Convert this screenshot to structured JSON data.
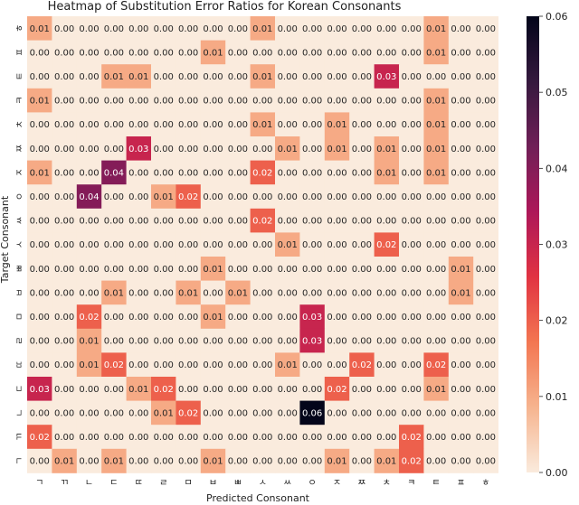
{
  "chart_data": {
    "type": "heatmap",
    "title": "Heatmap of Substitution Error Ratios for Korean Consonants",
    "xlabel": "Predicted Consonant",
    "ylabel": "Target Consonant",
    "x_categories": [
      "ㄱ",
      "ㄲ",
      "ㄴ",
      "ㄷ",
      "ㄸ",
      "ㄹ",
      "ㅁ",
      "ㅂ",
      "ㅃ",
      "ㅅ",
      "ㅆ",
      "ㅇ",
      "ㅈ",
      "ㅉ",
      "ㅊ",
      "ㅋ",
      "ㅌ",
      "ㅍ",
      "ㅎ"
    ],
    "y_categories": [
      "ㅎ",
      "ㅍ",
      "ㅌ",
      "ㅋ",
      "ㅊ",
      "ㅉ",
      "ㅈ",
      "ㅇ",
      "ㅆ",
      "ㅅ",
      "ㅃ",
      "ㅂ",
      "ㅁ",
      "ㄹ",
      "ㄸ",
      "ㄷ",
      "ㄴ",
      "ㄲ",
      "ㄱ"
    ],
    "values": [
      [
        0.01,
        0.0,
        0.0,
        0.0,
        0.0,
        0.0,
        0.0,
        0.0,
        0.0,
        0.01,
        0.0,
        0.0,
        0.0,
        0.0,
        0.0,
        0.0,
        0.01,
        0.0,
        0.0
      ],
      [
        0.0,
        0.0,
        0.0,
        0.0,
        0.0,
        0.0,
        0.0,
        0.01,
        0.0,
        0.0,
        0.0,
        0.0,
        0.0,
        0.0,
        0.0,
        0.0,
        0.01,
        0.0,
        0.0
      ],
      [
        0.0,
        0.0,
        0.0,
        0.01,
        0.01,
        0.0,
        0.0,
        0.0,
        0.0,
        0.01,
        0.0,
        0.0,
        0.0,
        0.0,
        0.03,
        0.0,
        0.0,
        0.0,
        0.0
      ],
      [
        0.01,
        0.0,
        0.0,
        0.0,
        0.0,
        0.0,
        0.0,
        0.0,
        0.0,
        0.0,
        0.0,
        0.0,
        0.0,
        0.0,
        0.0,
        0.0,
        0.01,
        0.0,
        0.0
      ],
      [
        0.0,
        0.0,
        0.0,
        0.0,
        0.0,
        0.0,
        0.0,
        0.0,
        0.0,
        0.01,
        0.0,
        0.0,
        0.01,
        0.0,
        0.0,
        0.0,
        0.01,
        0.0,
        0.0
      ],
      [
        0.0,
        0.0,
        0.0,
        0.0,
        0.03,
        0.0,
        0.0,
        0.0,
        0.0,
        0.0,
        0.01,
        0.0,
        0.01,
        0.0,
        0.01,
        0.0,
        0.01,
        0.0,
        0.0
      ],
      [
        0.01,
        0.0,
        0.0,
        0.04,
        0.0,
        0.0,
        0.0,
        0.0,
        0.0,
        0.02,
        0.0,
        0.0,
        0.0,
        0.0,
        0.01,
        0.0,
        0.01,
        0.0,
        0.0
      ],
      [
        0.0,
        0.0,
        0.04,
        0.0,
        0.0,
        0.01,
        0.02,
        0.0,
        0.0,
        0.0,
        0.0,
        0.0,
        0.0,
        0.0,
        0.0,
        0.0,
        0.0,
        0.0,
        0.0
      ],
      [
        0.0,
        0.0,
        0.0,
        0.0,
        0.0,
        0.0,
        0.0,
        0.0,
        0.0,
        0.02,
        0.0,
        0.0,
        0.0,
        0.0,
        0.0,
        0.0,
        0.0,
        0.0,
        0.0
      ],
      [
        0.0,
        0.0,
        0.0,
        0.0,
        0.0,
        0.0,
        0.0,
        0.0,
        0.0,
        0.0,
        0.01,
        0.0,
        0.0,
        0.0,
        0.02,
        0.0,
        0.0,
        0.0,
        0.0
      ],
      [
        0.0,
        0.0,
        0.0,
        0.0,
        0.0,
        0.0,
        0.0,
        0.01,
        0.0,
        0.0,
        0.0,
        0.0,
        0.0,
        0.0,
        0.0,
        0.0,
        0.0,
        0.01,
        0.0
      ],
      [
        0.0,
        0.0,
        0.0,
        0.01,
        0.0,
        0.0,
        0.01,
        0.0,
        0.01,
        0.0,
        0.0,
        0.0,
        0.0,
        0.0,
        0.0,
        0.0,
        0.0,
        0.01,
        0.0
      ],
      [
        0.0,
        0.0,
        0.02,
        0.0,
        0.0,
        0.0,
        0.0,
        0.01,
        0.0,
        0.0,
        0.0,
        0.03,
        0.0,
        0.0,
        0.0,
        0.0,
        0.0,
        0.0,
        0.0
      ],
      [
        0.0,
        0.0,
        0.01,
        0.0,
        0.0,
        0.0,
        0.0,
        0.0,
        0.0,
        0.0,
        0.0,
        0.03,
        0.0,
        0.0,
        0.0,
        0.0,
        0.0,
        0.0,
        0.0
      ],
      [
        0.0,
        0.0,
        0.01,
        0.02,
        0.0,
        0.0,
        0.0,
        0.0,
        0.0,
        0.0,
        0.01,
        0.0,
        0.0,
        0.02,
        0.0,
        0.0,
        0.02,
        0.0,
        0.0
      ],
      [
        0.03,
        0.0,
        0.0,
        0.0,
        0.01,
        0.02,
        0.0,
        0.0,
        0.0,
        0.0,
        0.0,
        0.0,
        0.02,
        0.0,
        0.0,
        0.0,
        0.01,
        0.0,
        0.0
      ],
      [
        0.0,
        0.0,
        0.0,
        0.0,
        0.0,
        0.01,
        0.02,
        0.0,
        0.0,
        0.0,
        0.0,
        0.06,
        0.0,
        0.0,
        0.0,
        0.0,
        0.0,
        0.0,
        0.0
      ],
      [
        0.02,
        0.0,
        0.0,
        0.0,
        0.0,
        0.0,
        0.0,
        0.0,
        0.0,
        0.0,
        0.0,
        0.0,
        0.0,
        0.0,
        0.0,
        0.02,
        0.0,
        0.0,
        0.0
      ],
      [
        0.0,
        0.01,
        0.0,
        0.01,
        0.0,
        0.0,
        0.0,
        0.01,
        0.0,
        0.0,
        0.0,
        0.0,
        0.01,
        0.0,
        0.01,
        0.02,
        0.0,
        0.0,
        0.0
      ]
    ],
    "value_format": "2 decimals",
    "colorbar": {
      "min": 0.0,
      "max": 0.06,
      "ticks": [
        0.0,
        0.01,
        0.02,
        0.03,
        0.04,
        0.05,
        0.06
      ],
      "tick_labels": [
        "0.00",
        "0.01",
        "0.02",
        "0.03",
        "0.04",
        "0.05",
        "0.06"
      ],
      "colormap": "rocket_r",
      "stops": [
        "#faebdd",
        "#f6b48f",
        "#f37651",
        "#e13342",
        "#ad1759",
        "#701f57",
        "#35193e",
        "#03051a"
      ]
    }
  }
}
